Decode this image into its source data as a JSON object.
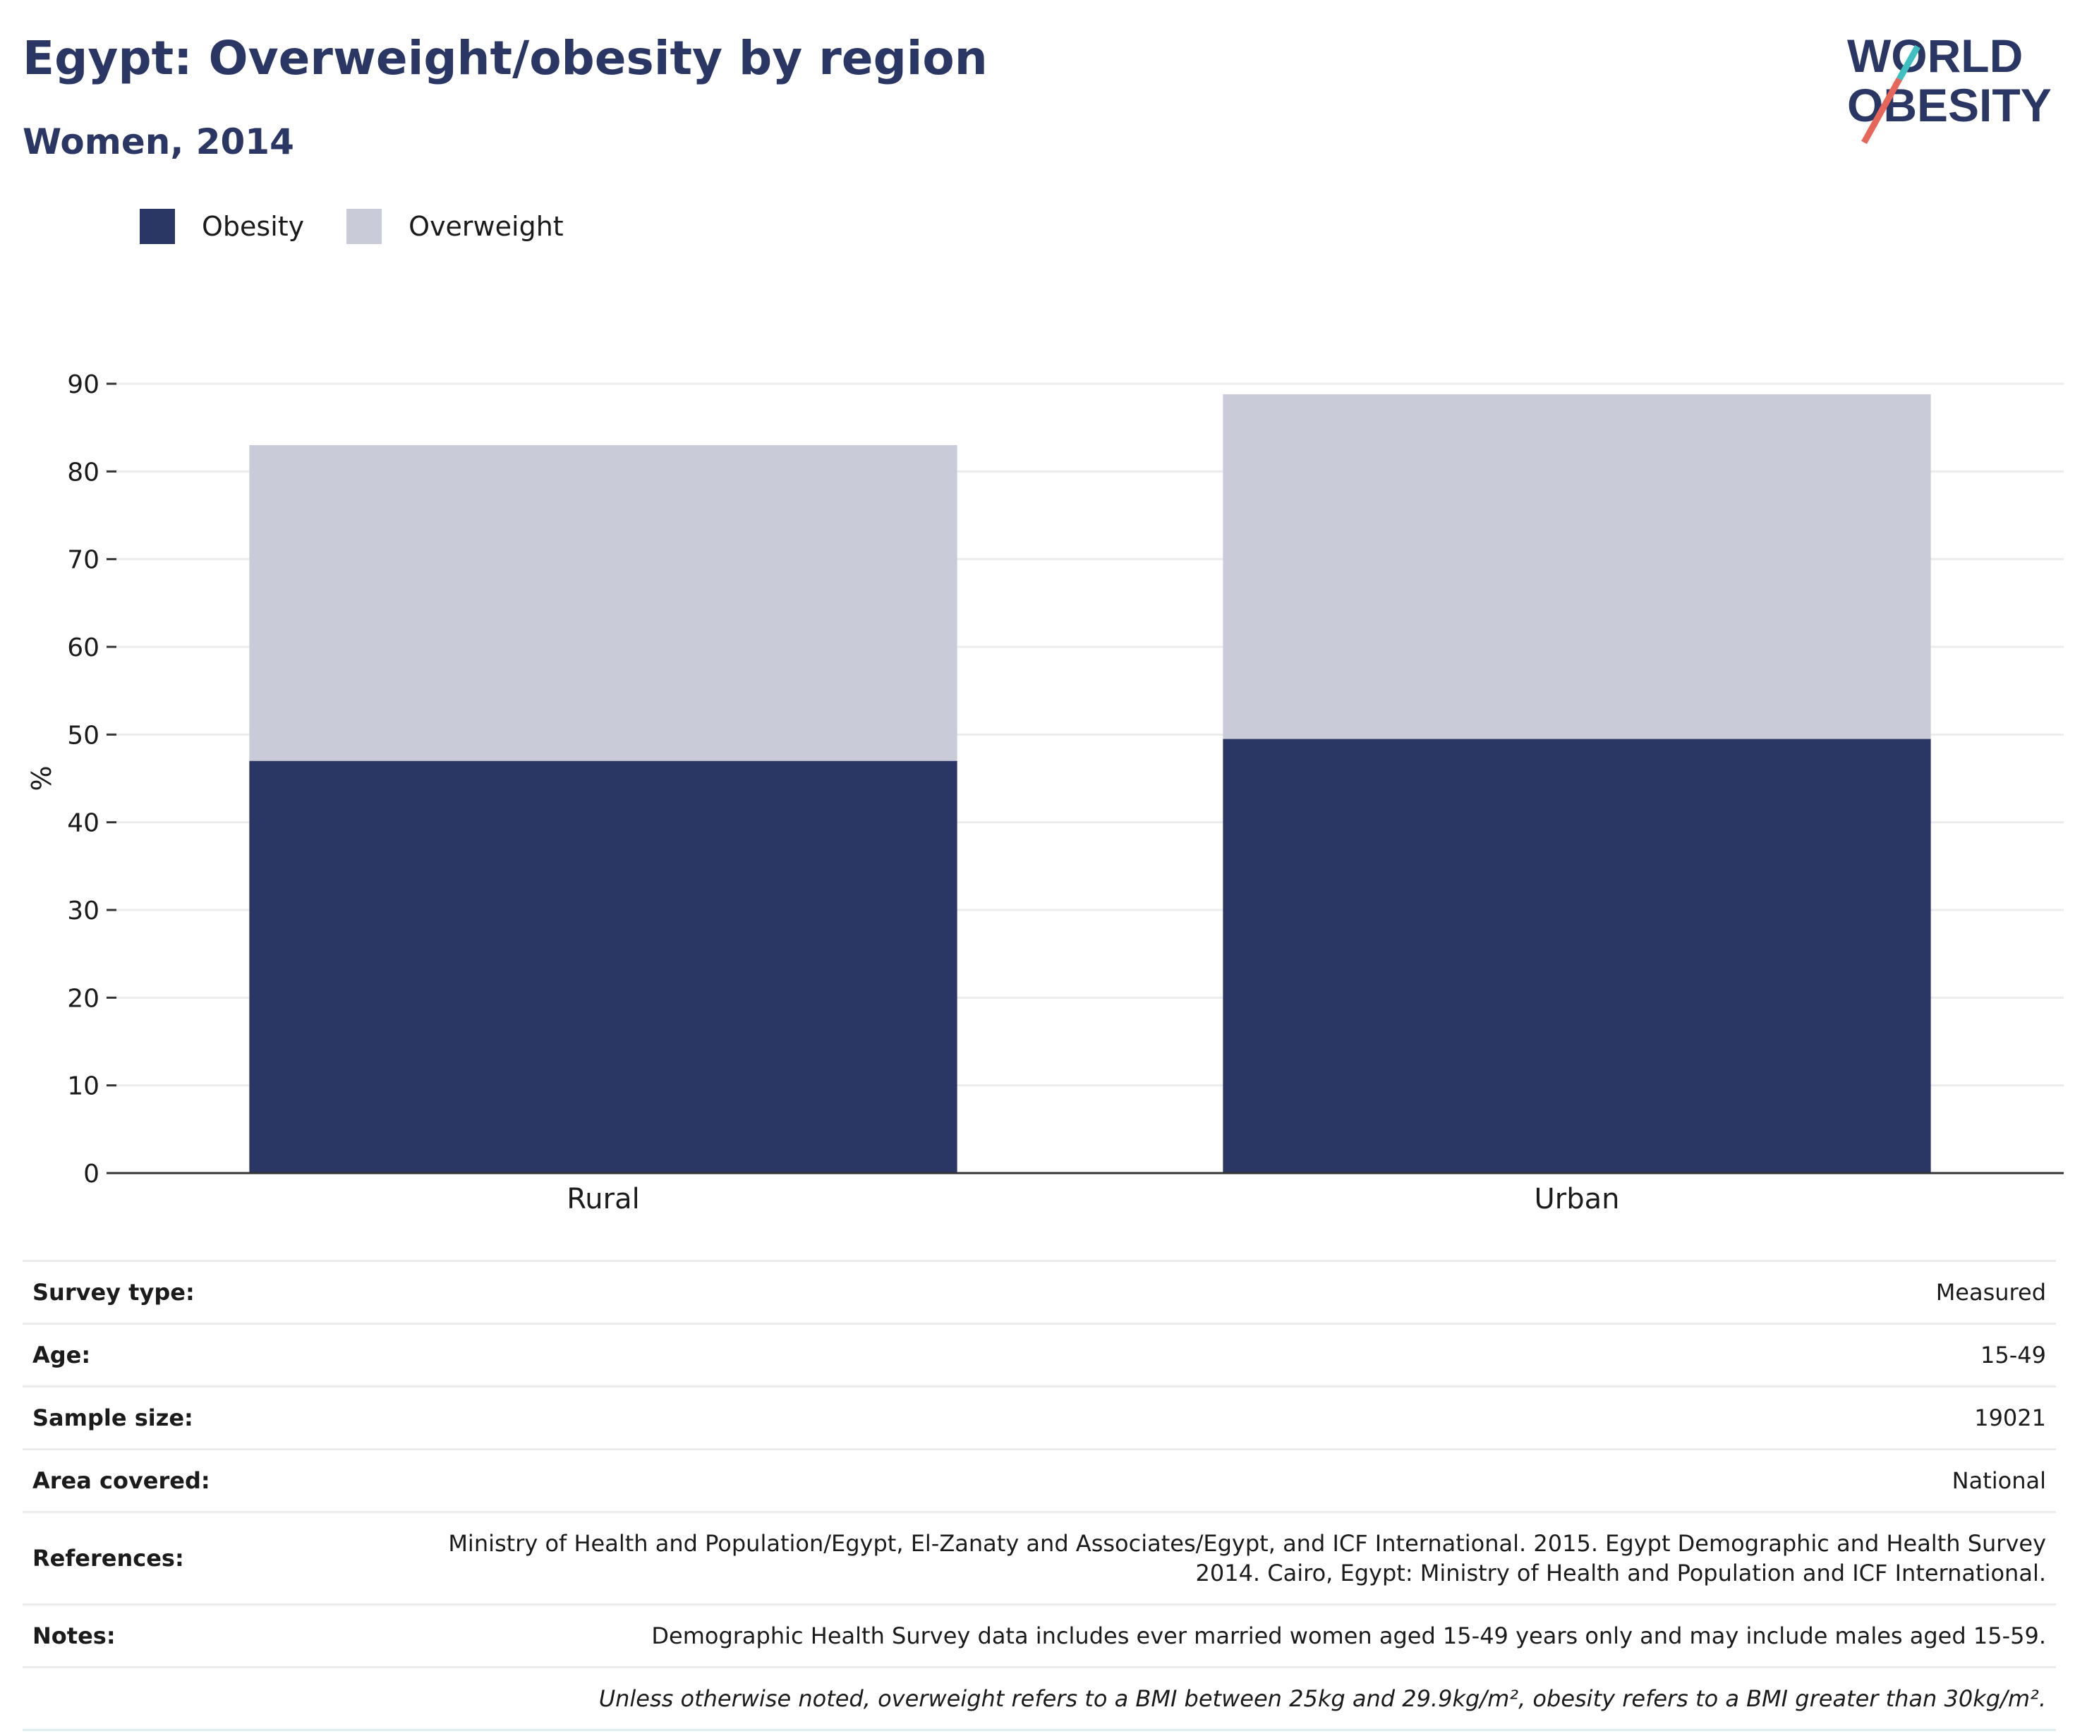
{
  "header": {
    "title": "Egypt: Overweight/obesity by region",
    "subtitle": "Women, 2014"
  },
  "logo": {
    "line1": "WORLD",
    "line2": "OBESITY",
    "text_color": "#2a3663",
    "slash_colors": [
      "#e8655a",
      "#3fbfbf"
    ]
  },
  "legend": [
    {
      "label": "Obesity",
      "color": "#2a3663"
    },
    {
      "label": "Overweight",
      "color": "#c9ccd8"
    }
  ],
  "chart_data": {
    "type": "bar",
    "stacked": true,
    "categories": [
      "Rural",
      "Urban"
    ],
    "series": [
      {
        "name": "Obesity",
        "values": [
          47.0,
          49.5
        ],
        "color": "#2a3663"
      },
      {
        "name": "Overweight",
        "values": [
          36.0,
          39.3
        ],
        "color": "#c9ccd8"
      }
    ],
    "ylabel": "%",
    "ylim": [
      0,
      90
    ],
    "yticks": [
      0,
      10,
      20,
      30,
      40,
      50,
      60,
      70,
      80,
      90
    ],
    "grid": true
  },
  "info": [
    {
      "key": "Survey type:",
      "value": "Measured"
    },
    {
      "key": "Age:",
      "value": "15-49"
    },
    {
      "key": "Sample size:",
      "value": "19021"
    },
    {
      "key": "Area covered:",
      "value": "National"
    },
    {
      "key": "References:",
      "value": "Ministry of Health and Population/Egypt, El-Zanaty and Associates/Egypt, and ICF International. 2015. Egypt Demographic and Health Survey 2014. Cairo, Egypt: Ministry of Health and Population and ICF International."
    },
    {
      "key": "Notes:",
      "value": "Demographic Health Survey data includes ever married women aged 15-49 years only and may include males aged 15-59."
    }
  ],
  "footnote": "Unless otherwise noted, overweight refers to a BMI between 25kg and 29.9kg/m², obesity refers to a BMI greater than 30kg/m²."
}
